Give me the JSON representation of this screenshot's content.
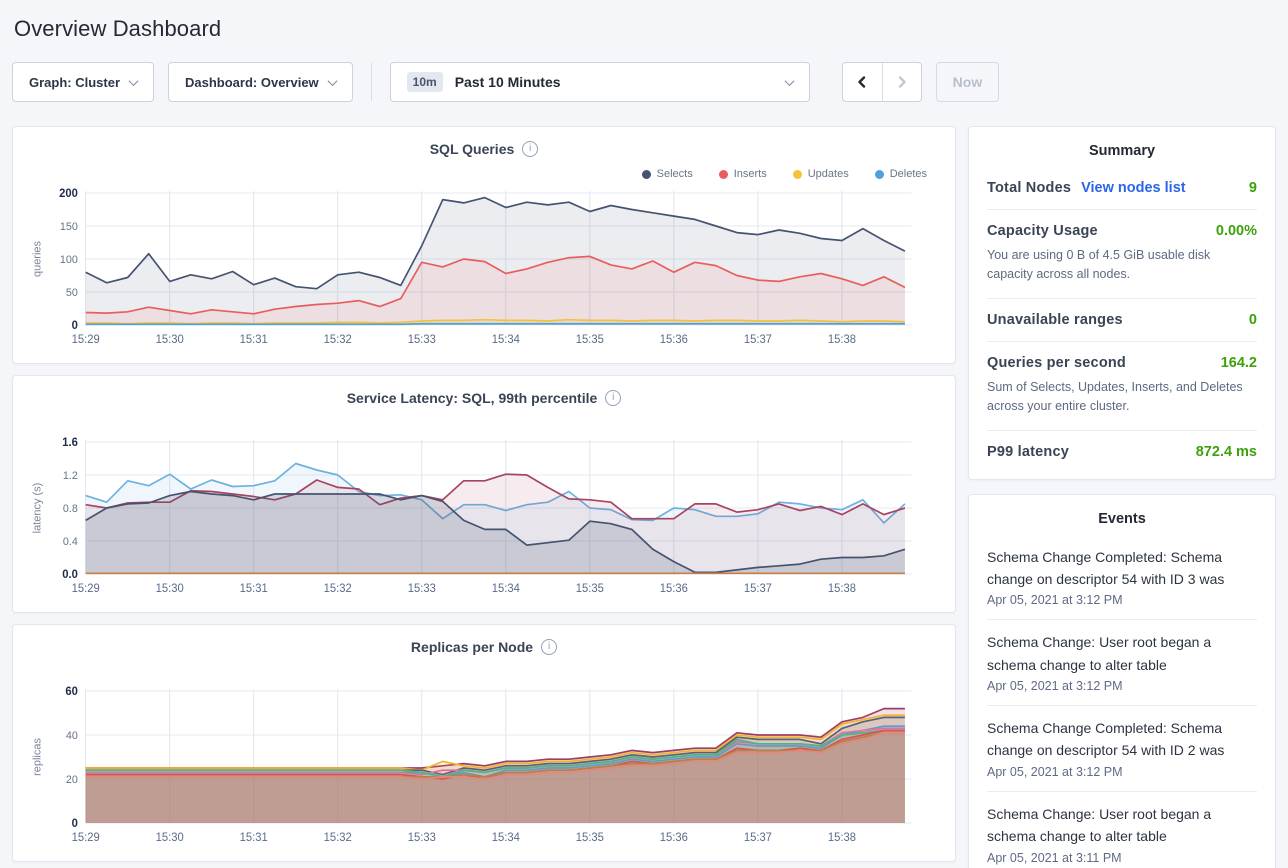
{
  "page": {
    "title": "Overview Dashboard"
  },
  "toolbar": {
    "graph_dropdown": "Graph: Cluster",
    "dashboard_dropdown": "Dashboard: Overview",
    "time_badge": "10m",
    "time_label": "Past 10 Minutes",
    "now_button": "Now"
  },
  "colors": {
    "value_green": "#3da10b",
    "link_blue": "#2b66e8",
    "selects_navy": "#44536f",
    "updates_yellow": "#f5c13d",
    "inserts_red": "#e85e5e",
    "deletes_blue": "#4ba3dd"
  },
  "summary": {
    "title": "Summary",
    "rows": [
      {
        "label": "Total Nodes",
        "link": "View nodes list",
        "value": "9"
      },
      {
        "label": "Capacity Usage",
        "value": "0.00%",
        "description": "You are using 0 B of 4.5 GiB usable disk capacity across all nodes."
      },
      {
        "label": "Unavailable ranges",
        "value": "0"
      },
      {
        "label": "Queries per second",
        "value": "164.2",
        "description": "Sum of Selects, Updates, Inserts, and Deletes across your entire cluster."
      },
      {
        "label": "P99 latency",
        "value": "872.4 ms"
      }
    ]
  },
  "events": {
    "title": "Events",
    "items": [
      {
        "text": "Schema Change Completed: Schema change on descriptor 54 with ID 3 was",
        "timestamp": "Apr 05, 2021 at 3:12 PM"
      },
      {
        "text": "Schema Change: User root began a schema change to alter table",
        "timestamp": "Apr 05, 2021 at 3:12 PM"
      },
      {
        "text": "Schema Change Completed: Schema change on descriptor 54 with ID 2 was",
        "timestamp": "Apr 05, 2021 at 3:12 PM"
      },
      {
        "text": "Schema Change: User root began a schema change to alter table",
        "timestamp": "Apr 05, 2021 at 3:11 PM"
      }
    ]
  },
  "chart_data": [
    {
      "type": "area",
      "title": "SQL Queries",
      "ylabel": "queries",
      "ylim": [
        0,
        200
      ],
      "ytick_values": [
        0,
        50,
        100,
        150,
        200
      ],
      "ytick_labels": [
        "0",
        "50",
        "100",
        "150",
        "200"
      ],
      "xtick_labels": [
        "15:29",
        "15:30",
        "15:31",
        "15:32",
        "15:33",
        "15:34",
        "15:35",
        "15:36",
        "15:37",
        "15:38"
      ],
      "xspan_minutes": 9.83,
      "dt_minutes": 0.25,
      "legend_visible": true,
      "series": [
        {
          "name": "Selects",
          "color": "#44536f",
          "fill_opacity": 0.1,
          "values": [
            80,
            64,
            72,
            108,
            66,
            76,
            70,
            81,
            61,
            71,
            58,
            55,
            76,
            80,
            72,
            60,
            120,
            190,
            185,
            193,
            178,
            186,
            182,
            186,
            172,
            181,
            175,
            170,
            165,
            160,
            150,
            140,
            137,
            144,
            139,
            131,
            128,
            146,
            128,
            112
          ]
        },
        {
          "name": "Inserts",
          "color": "#e85e5e",
          "fill_opacity": 0.1,
          "values": [
            19,
            18,
            20,
            27,
            22,
            17,
            23,
            20,
            17,
            24,
            28,
            31,
            33,
            37,
            28,
            40,
            95,
            88,
            100,
            96,
            78,
            85,
            95,
            102,
            104,
            91,
            85,
            97,
            80,
            95,
            90,
            75,
            68,
            66,
            73,
            78,
            70,
            60,
            73,
            57
          ]
        },
        {
          "name": "Updates",
          "color": "#f5c13d",
          "fill_opacity": 0.15,
          "values": [
            3,
            3,
            2,
            3,
            3,
            2,
            3,
            3,
            2,
            3,
            3,
            3,
            4,
            4,
            3,
            4,
            6,
            7,
            7,
            8,
            7,
            7,
            6,
            8,
            7,
            7,
            6,
            7,
            7,
            6,
            7,
            7,
            6,
            6,
            7,
            6,
            5,
            6,
            6,
            5
          ]
        },
        {
          "name": "Deletes",
          "color": "#4ba3dd",
          "fill_opacity": 0.2,
          "values": [
            1,
            1,
            1,
            1,
            1,
            1,
            1,
            1,
            1,
            1,
            1,
            1,
            1,
            1,
            1,
            1,
            2,
            2,
            2,
            2,
            2,
            2,
            2,
            2,
            2,
            2,
            2,
            2,
            2,
            2,
            2,
            2,
            2,
            2,
            2,
            2,
            2,
            2,
            2,
            2
          ]
        }
      ]
    },
    {
      "type": "area",
      "title": "Service Latency: SQL, 99th percentile",
      "ylabel": "latency (s)",
      "ylim": [
        0,
        1.6
      ],
      "ytick_values": [
        0,
        0.4,
        0.8,
        1.2,
        1.6
      ],
      "ytick_labels": [
        "0.0",
        "0.4",
        "0.8",
        "1.2",
        "1.6"
      ],
      "xtick_labels": [
        "15:29",
        "15:30",
        "15:31",
        "15:32",
        "15:33",
        "15:34",
        "15:35",
        "15:36",
        "15:37",
        "15:38"
      ],
      "xspan_minutes": 9.83,
      "dt_minutes": 0.25,
      "legend_visible": false,
      "series": [
        {
          "color": "#6cb1e1",
          "fill_opacity": 0.1,
          "values": [
            0.95,
            0.87,
            1.13,
            1.07,
            1.21,
            1.03,
            1.14,
            1.06,
            1.07,
            1.13,
            1.34,
            1.26,
            1.2,
            1.0,
            0.95,
            0.96,
            0.9,
            0.67,
            0.84,
            0.84,
            0.77,
            0.84,
            0.87,
            1.0,
            0.8,
            0.78,
            0.66,
            0.65,
            0.8,
            0.78,
            0.7,
            0.7,
            0.73,
            0.87,
            0.85,
            0.8,
            0.78,
            0.9,
            0.62,
            0.85
          ]
        },
        {
          "color": "#a8435f",
          "fill_opacity": 0.1,
          "values": [
            0.84,
            0.8,
            0.86,
            0.87,
            0.87,
            1.01,
            1.0,
            0.97,
            0.94,
            0.9,
            0.97,
            1.14,
            1.05,
            1.03,
            0.84,
            0.92,
            0.95,
            0.9,
            1.13,
            1.13,
            1.21,
            1.2,
            1.05,
            0.91,
            0.9,
            0.87,
            0.67,
            0.67,
            0.67,
            0.85,
            0.85,
            0.75,
            0.78,
            0.85,
            0.77,
            0.82,
            0.72,
            0.85,
            0.72,
            0.8
          ]
        },
        {
          "color": "#44536f",
          "fill_opacity": 0.18,
          "values": [
            0.65,
            0.8,
            0.85,
            0.86,
            0.95,
            1.0,
            0.97,
            0.95,
            0.9,
            0.97,
            0.97,
            0.97,
            0.97,
            0.97,
            0.97,
            0.9,
            0.95,
            0.88,
            0.65,
            0.54,
            0.54,
            0.35,
            0.38,
            0.41,
            0.64,
            0.61,
            0.54,
            0.3,
            0.15,
            0.02,
            0.02,
            0.05,
            0.08,
            0.1,
            0.12,
            0.18,
            0.2,
            0.2,
            0.22,
            0.3
          ]
        },
        {
          "color": "#c97e45",
          "fill_opacity": 0,
          "constant": 0.008,
          "points": 40
        }
      ]
    },
    {
      "type": "area",
      "title": "Replicas per Node",
      "ylabel": "replicas",
      "ylim": [
        0,
        60
      ],
      "ytick_values": [
        0,
        20,
        40,
        60
      ],
      "ytick_labels": [
        "0",
        "20",
        "40",
        "60"
      ],
      "xtick_labels": [
        "15:29",
        "15:30",
        "15:31",
        "15:32",
        "15:33",
        "15:34",
        "15:35",
        "15:36",
        "15:37",
        "15:38"
      ],
      "xspan_minutes": 9.83,
      "dt_minutes": 0.25,
      "legend_visible": false,
      "series": [
        {
          "color": "#9e3d64",
          "fill_opacity": 0.15,
          "values": [
            25,
            25,
            25,
            25,
            25,
            25,
            25,
            25,
            25,
            25,
            25,
            25,
            25,
            25,
            25,
            25,
            25,
            26,
            27,
            26,
            28,
            28,
            29,
            29,
            30,
            31,
            33,
            32,
            33,
            34,
            34,
            41,
            40,
            40,
            40,
            39,
            46,
            48,
            52,
            52
          ]
        },
        {
          "color": "#f0b32e",
          "fill_opacity": 0.15,
          "values": [
            25,
            25,
            25,
            25,
            25,
            25,
            25,
            25,
            25,
            25,
            25,
            25,
            25,
            25,
            25,
            25,
            24,
            28,
            26,
            25,
            27,
            27,
            28,
            28,
            29,
            30,
            32,
            31,
            32,
            33,
            33,
            40,
            39,
            39,
            39,
            38,
            45,
            47,
            49,
            49
          ]
        },
        {
          "color": "#5a6173",
          "fill_opacity": 0.15,
          "values": [
            24,
            24,
            24,
            24,
            24,
            24,
            24,
            24,
            24,
            24,
            24,
            24,
            24,
            24,
            24,
            24,
            24,
            22,
            25,
            24,
            26,
            26,
            27,
            27,
            28,
            29,
            31,
            30,
            31,
            32,
            32,
            39,
            38,
            38,
            38,
            36,
            43,
            46,
            48,
            48
          ]
        },
        {
          "color": "#5b9bd5",
          "fill_opacity": 0.15,
          "values": [
            23,
            23,
            23,
            23,
            23,
            23,
            23,
            23,
            23,
            23,
            23,
            23,
            23,
            23,
            23,
            23,
            23,
            21,
            23,
            21,
            24,
            24,
            25,
            25,
            26,
            27,
            29,
            28,
            29,
            30,
            30,
            36,
            35,
            35,
            35,
            34,
            40,
            42,
            44,
            44
          ]
        },
        {
          "color": "#e0719e",
          "fill_opacity": 0.15,
          "values": [
            23,
            23,
            23,
            23,
            23,
            23,
            23,
            23,
            23,
            23,
            23,
            23,
            23,
            23,
            23,
            23,
            22,
            24,
            24,
            23,
            25,
            25,
            26,
            26,
            27,
            28,
            30,
            29,
            30,
            31,
            31,
            37,
            36,
            36,
            36,
            35,
            41,
            42,
            43,
            43
          ]
        },
        {
          "color": "#4db584",
          "fill_opacity": 0.15,
          "values": [
            24,
            24,
            24,
            24,
            24,
            24,
            24,
            24,
            24,
            24,
            24,
            24,
            24,
            24,
            24,
            24,
            23,
            21,
            24,
            23,
            25,
            25,
            26,
            26,
            27,
            28,
            30,
            29,
            30,
            31,
            31,
            38,
            36,
            36,
            36,
            35,
            40,
            41,
            42,
            42
          ]
        },
        {
          "color": "#d9534f",
          "fill_opacity": 0.15,
          "values": [
            22,
            22,
            22,
            22,
            22,
            22,
            22,
            22,
            22,
            22,
            22,
            22,
            22,
            22,
            22,
            22,
            21,
            20,
            22,
            20,
            23,
            23,
            24,
            24,
            25,
            26,
            28,
            27,
            28,
            29,
            29,
            34,
            33,
            33,
            34,
            33,
            38,
            40,
            42,
            42
          ]
        },
        {
          "color": "#b5824e",
          "fill_opacity": 0.15,
          "values": [
            21,
            21,
            21,
            21,
            21,
            21,
            21,
            21,
            21,
            21,
            21,
            21,
            21,
            21,
            21,
            21,
            21,
            21,
            22,
            21,
            23,
            23,
            24,
            24,
            25,
            26,
            27,
            27,
            28,
            29,
            29,
            33,
            33,
            33,
            33,
            33,
            37,
            39,
            41,
            41
          ]
        },
        {
          "color": "#e08a7a",
          "fill_opacity": 0.15,
          "values": [
            21,
            21,
            21,
            21,
            21,
            21,
            21,
            21,
            21,
            21,
            21,
            21,
            21,
            21,
            21,
            21,
            20,
            21,
            21,
            20,
            22,
            22,
            23,
            23,
            24,
            25,
            26,
            26,
            27,
            28,
            28,
            32,
            32,
            32,
            33,
            32,
            36,
            38,
            41,
            41
          ]
        }
      ]
    }
  ]
}
